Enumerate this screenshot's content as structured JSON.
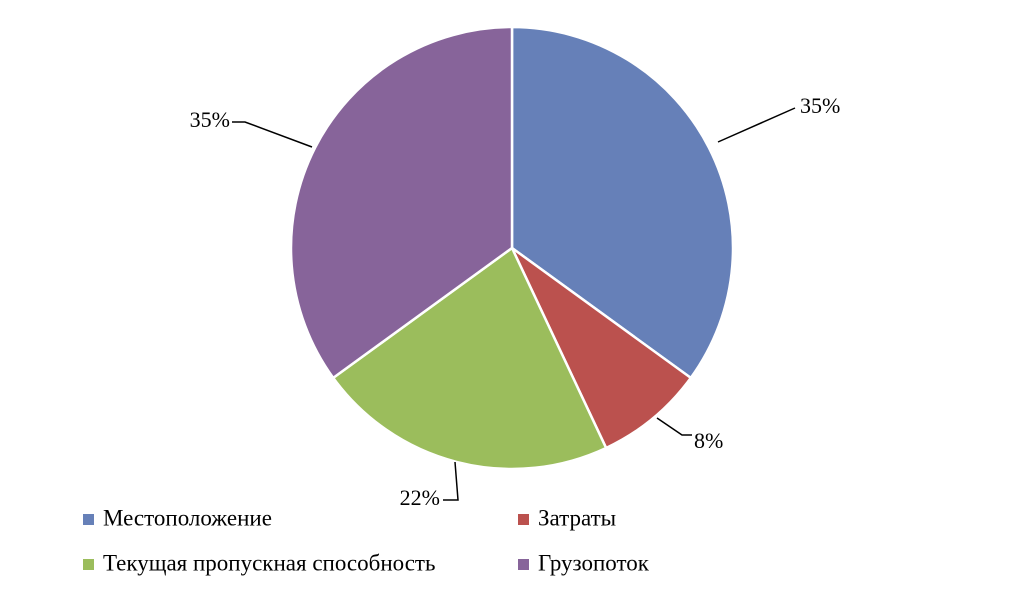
{
  "chart_data": {
    "type": "pie",
    "categories": [
      "Местоположение",
      "Затраты",
      "Текущая пропускная способность",
      "Грузопоток"
    ],
    "values": [
      35,
      8,
      22,
      35
    ],
    "labels": [
      "35%",
      "8%",
      "22%",
      "35%"
    ],
    "colors": [
      "#6680b8",
      "#bb514e",
      "#9bbd5c",
      "#87649a"
    ],
    "start_angle_deg": 0,
    "direction": "clockwise",
    "legend_position": "bottom"
  }
}
